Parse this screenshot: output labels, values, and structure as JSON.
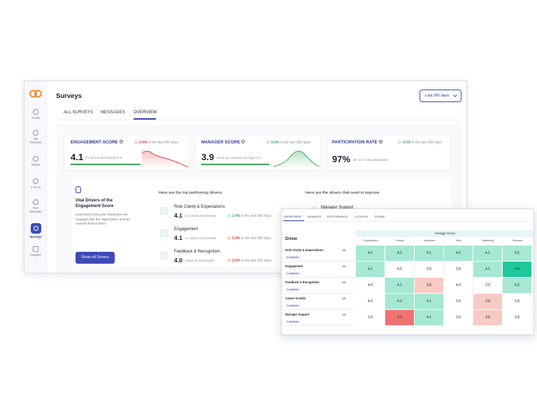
{
  "app": {
    "title": "Surveys",
    "date_range": "Last 365 days",
    "tabs": [
      "ALL SURVEYS",
      "MESSAGES",
      "OVERVIEW"
    ],
    "active_tab": "OVERVIEW"
  },
  "sidebar": {
    "items": [
      {
        "label": "Goals",
        "icon": "target-icon"
      },
      {
        "label": "8th Reviews",
        "icon": "trophy-icon"
      },
      {
        "label": "OKRs",
        "icon": "target-icon"
      },
      {
        "label": "1 on 1s",
        "icon": "chat-icon"
      },
      {
        "label": "Perf Reviews",
        "icon": "trophy-icon"
      },
      {
        "label": "Surveys",
        "icon": "survey-icon"
      },
      {
        "label": "Insights",
        "icon": "chart-icon"
      }
    ]
  },
  "metrics": {
    "engagement": {
      "title": "ENGAGEMENT SCORE",
      "trend": "2.4%",
      "trend_suffix": "in the last 365 days",
      "value": "4.1",
      "sub": "0.1 above Benchmark 4.0"
    },
    "manager": {
      "title": "MANAGER SCORE",
      "trend": "0.0%",
      "trend_suffix": "in the last 365 days",
      "value": "3.9",
      "sub": "same as company average 3.9"
    },
    "participation": {
      "title": "PARTICIPATION RATE",
      "trend": "0.0%",
      "trend_suffix": "in the last 365 days",
      "value": "97%",
      "sub": "35 out of 36 participated"
    }
  },
  "vital": {
    "title": "Vital Drivers of the Engagement Score",
    "description": "Understand how your employees are engaged with the organization and the reasons behind them",
    "button": "Show all Drivers"
  },
  "top_drivers": {
    "heading": "Here are the top performing drivers",
    "items": [
      {
        "name": "Role Clarity & Expectations",
        "score": "4.1",
        "sub": "0.1 above benchmark",
        "trend": "2.4%",
        "trend_suffix": "in the last 365 days",
        "dir": "up"
      },
      {
        "name": "Engagement",
        "score": "4.1",
        "sub": "0.1 above benchmark",
        "trend": "2.4%",
        "trend_suffix": "in the last 365 days",
        "dir": "down"
      },
      {
        "name": "Feedback & Recognition",
        "score": "4.0",
        "sub": "same as benchmark",
        "trend": "2.6%",
        "trend_suffix": "in the last 365 days",
        "dir": "down"
      }
    ]
  },
  "improve": {
    "heading": "Here are the drivers that need to improve",
    "items": [
      {
        "name": "Manager Support"
      }
    ]
  },
  "heatmap": {
    "tabs": [
      "DEPARTMENT",
      "MANAGER",
      "PERFORMANCE",
      "LOCATION",
      "TENURE"
    ],
    "active_tab": "DEPARTMENT",
    "group_header": "Average Score",
    "driver_header": "Driver",
    "columns": [
      "Organization",
      "Design",
      "Hardware",
      "Misc",
      "Marketing",
      "Software"
    ],
    "rows": [
      {
        "name": "Role Clarity & Expectations",
        "questions": "8 questions",
        "count": "35",
        "values": [
          "4.1",
          "4.2",
          "4.1",
          "4.2",
          "4.1",
          "4.2"
        ]
      },
      {
        "name": "Engagement",
        "questions": "1 questions",
        "count": "35",
        "values": [
          "4.1",
          "4.0",
          "3.9",
          "3.9",
          "4.1",
          "4.4"
        ]
      },
      {
        "name": "Feedback & Recognition",
        "questions": "2 questions",
        "count": "35",
        "values": [
          "4.0",
          "4.1",
          "3.8",
          "4.0",
          "3.9",
          "4.2"
        ]
      },
      {
        "name": "Career Growth",
        "questions": "2 questions",
        "count": "35",
        "values": [
          "4.0",
          "4.2",
          "4.1",
          "3.9",
          "3.8",
          "3.9"
        ]
      },
      {
        "name": "Manager Support",
        "questions": "2 questions",
        "count": "35",
        "values": [
          "3.9",
          "3.3",
          "4.1",
          "3.9",
          "3.8",
          "3.9"
        ]
      }
    ],
    "colors": {
      "high": "#1fc79a",
      "good": "#a6e8d3",
      "mid": "#c9efe3",
      "neutral": "#ffffff",
      "low": "#f7cbc4",
      "bad": "#ee7474"
    }
  }
}
